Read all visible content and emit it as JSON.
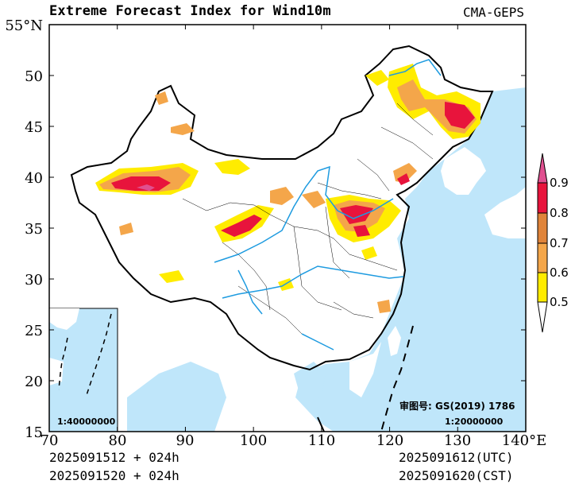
{
  "header": {
    "title": "Extreme Forecast Index for Wind10m",
    "source": "CMA-GEPS"
  },
  "axes": {
    "lat_labels": [
      "55°N",
      "50",
      "45",
      "40",
      "35",
      "30",
      "25",
      "20",
      "15"
    ],
    "lon_labels": [
      "70",
      "80",
      "90",
      "100",
      "110",
      "120",
      "130",
      "140°E"
    ],
    "lon_range": [
      70,
      140
    ],
    "lat_range": [
      15,
      55
    ]
  },
  "colorbar": {
    "levels": [
      "0.5",
      "0.6",
      "0.7",
      "0.8",
      "0.9"
    ],
    "colors": [
      "#ffffff",
      "#ffec00",
      "#f4a64a",
      "#e0843a",
      "#e8143c",
      "#e05090"
    ]
  },
  "map_colors": {
    "ocean": "#bfe6fa",
    "land": "#ffffff",
    "river": "#1e9be0",
    "border": "#000000"
  },
  "annotations": {
    "approval": "审图号: GS(2019) 1786",
    "scale_main": "1:20000000",
    "scale_inset": "1:40000000"
  },
  "footer": {
    "init_utc": "2025091512 + 024h",
    "init_cst": "2025091520 + 024h",
    "valid_utc": "2025091612(UTC)",
    "valid_cst": "2025091620(CST)"
  }
}
